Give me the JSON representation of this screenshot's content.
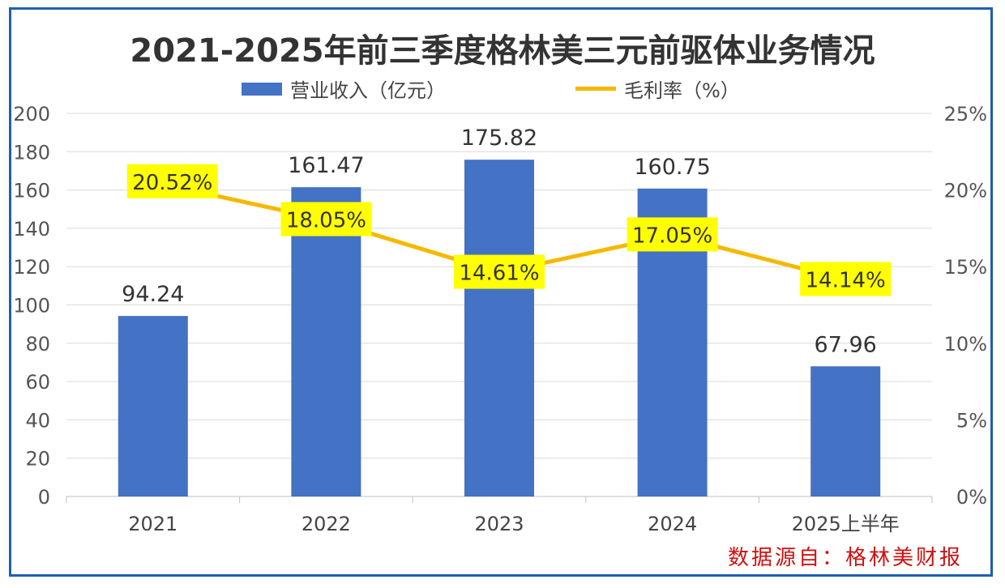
{
  "chart_data": {
    "type": "bar+line",
    "title": "2021-2025年前三季度格林美三元前驱体业务情况",
    "categories": [
      "2021",
      "2022",
      "2023",
      "2024",
      "2025上半年"
    ],
    "series": [
      {
        "name": "营业收入（亿元）",
        "type": "bar",
        "axis": "left",
        "values": [
          94.24,
          161.47,
          175.82,
          160.75,
          67.96
        ],
        "labels": [
          "94.24",
          "161.47",
          "175.82",
          "160.75",
          "67.96"
        ]
      },
      {
        "name": "毛利率（%）",
        "type": "line",
        "axis": "right",
        "values": [
          20.52,
          18.05,
          14.61,
          17.05,
          14.14
        ],
        "labels": [
          "20.52%",
          "18.05%",
          "14.61%",
          "17.05%",
          "14.14%"
        ]
      }
    ],
    "ylim": [
      0,
      200
    ],
    "yticks": [
      "0",
      "20",
      "40",
      "60",
      "80",
      "100",
      "120",
      "140",
      "160",
      "180",
      "200"
    ],
    "y2lim": [
      0,
      25
    ],
    "y2ticks": [
      "0%",
      "5%",
      "10%",
      "15%",
      "20%",
      "25%"
    ],
    "grid": true,
    "legend_position": "top-center",
    "colors": {
      "bar": "#4472c4",
      "line": "#f5b800",
      "label_bg": "#ffff00"
    },
    "source": "数据源自：格林美财报"
  }
}
